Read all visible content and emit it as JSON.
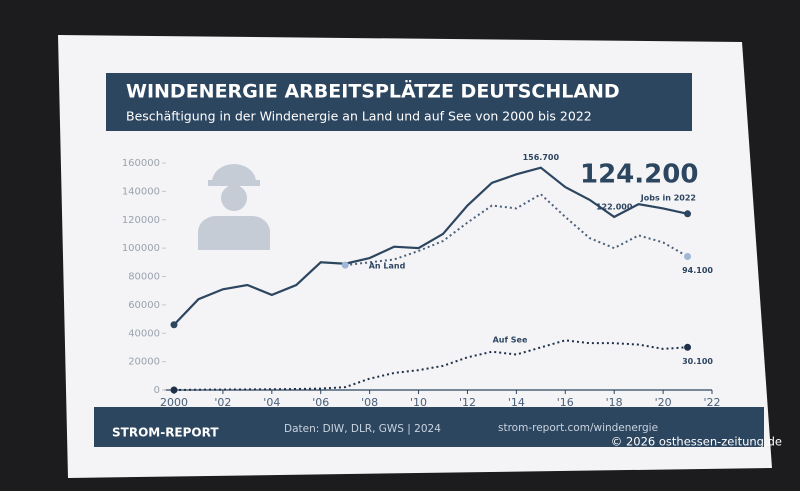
{
  "chart_data": {
    "type": "line",
    "title": "WINDENERGIE ARBEITSPLÄTZE DEUTSCHLAND",
    "subtitle": "Beschäftigung in der Windenergie an Land und auf See von 2000 bis 2022",
    "annotations": [
      "Jobs in 2022"
    ],
    "x": [
      2000,
      2001,
      2002,
      2003,
      2004,
      2005,
      2006,
      2007,
      2008,
      2009,
      2010,
      2011,
      2012,
      2013,
      2014,
      2015,
      2016,
      2017,
      2018,
      2019,
      2020,
      2021
    ],
    "series": [
      {
        "color": "#2d4660",
        "style": "solid",
        "values": [
          46000,
          64000,
          71000,
          74000,
          67000,
          74000,
          90000,
          89000,
          93000,
          101000,
          100000,
          110000,
          130000,
          146000,
          152000,
          156700,
          143000,
          134000,
          122000,
          131000,
          128000,
          124200
        ],
        "value_labels": [
          null,
          null,
          null,
          null,
          null,
          null,
          null,
          null,
          null,
          null,
          null,
          null,
          null,
          null,
          null,
          "156.700",
          null,
          null,
          "122.000",
          null,
          null,
          "124.200"
        ]
      },
      {
        "name": "An Land",
        "color": "#4a5f78",
        "style": "dotted",
        "values": [
          null,
          null,
          null,
          null,
          null,
          null,
          null,
          88000,
          90000,
          92000,
          98000,
          105000,
          118000,
          130000,
          128000,
          138000,
          122000,
          107000,
          100000,
          109000,
          104000,
          94100
        ],
        "value_labels": [
          null,
          null,
          null,
          null,
          null,
          null,
          null,
          null,
          null,
          null,
          null,
          null,
          null,
          null,
          null,
          null,
          null,
          null,
          null,
          null,
          null,
          "94.100"
        ]
      },
      {
        "name": "Auf See",
        "color": "#1f3148",
        "style": "dotted",
        "values": [
          0,
          200,
          300,
          400,
          500,
          700,
          1000,
          2000,
          8000,
          12000,
          14000,
          17000,
          23000,
          27000,
          25000,
          30000,
          35000,
          33000,
          33000,
          32000,
          29000,
          30100
        ],
        "value_labels": [
          null,
          null,
          null,
          null,
          null,
          null,
          null,
          null,
          null,
          null,
          null,
          null,
          null,
          null,
          null,
          null,
          null,
          null,
          null,
          null,
          null,
          "30.100"
        ]
      }
    ],
    "xlim": [
      2000,
      2022
    ],
    "xticks": [
      2000,
      {
        "value": 2002,
        "label": "'02"
      },
      {
        "value": 2004,
        "label": "'04"
      },
      {
        "value": 2006,
        "label": "'06"
      },
      {
        "value": 2008,
        "label": "'08"
      },
      {
        "value": 2010,
        "label": "'10"
      },
      {
        "value": 2012,
        "label": "'12"
      },
      {
        "value": 2014,
        "label": "'14"
      },
      {
        "value": 2016,
        "label": "'16"
      },
      {
        "value": 2018,
        "label": "'18"
      },
      {
        "value": 2020,
        "label": "'20"
      },
      {
        "value": 2022,
        "label": "'22"
      }
    ],
    "ylim": [
      0,
      160000
    ],
    "yticks": [
      0,
      20000,
      40000,
      60000,
      80000,
      100000,
      120000,
      140000,
      160000
    ],
    "grid": false
  },
  "footer": {
    "brand": "STROM-REPORT",
    "source": "Daten: DIW, DLR, GWS | 2024",
    "url": "strom-report.com/windenergie"
  },
  "watermark": "© 2026 osthessen-zeitung.de"
}
